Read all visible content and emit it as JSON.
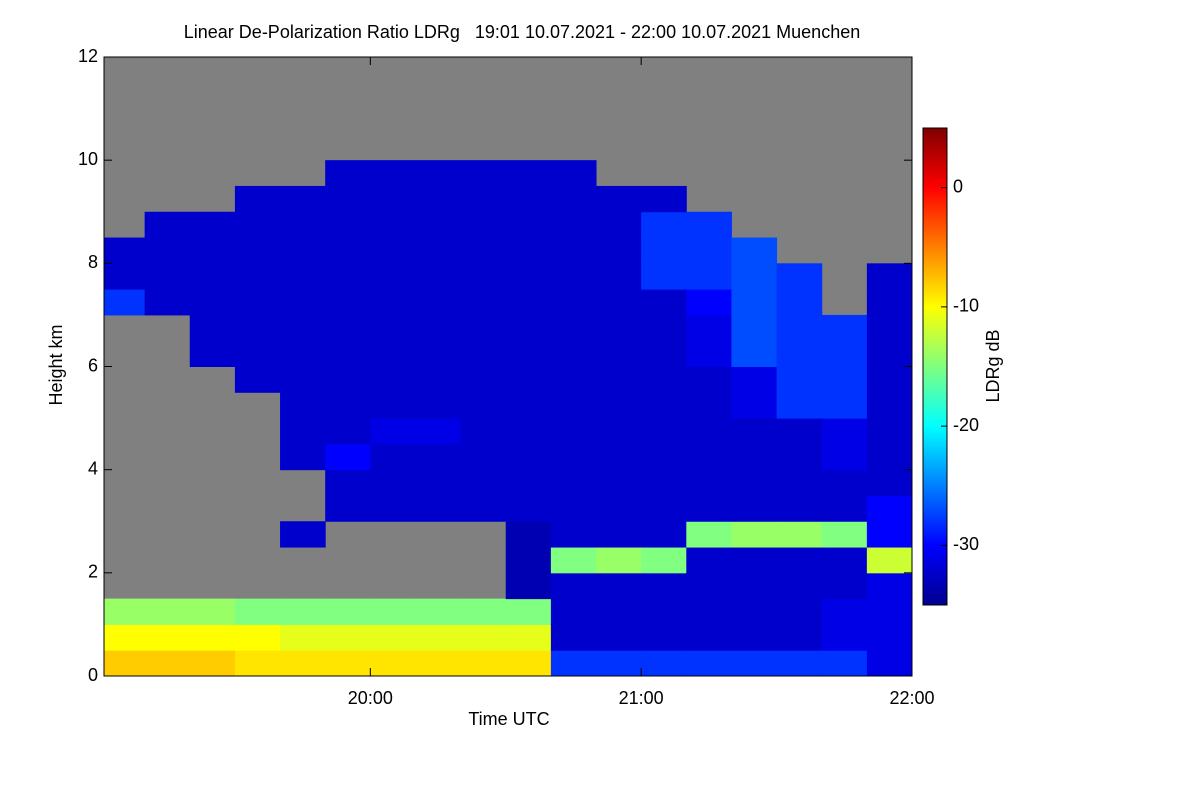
{
  "chart_data": {
    "type": "heatmap",
    "title": "Linear De-Polarization Ratio LDRg   19:01 10.07.2021 - 22:00 10.07.2021 Muenchen",
    "xlabel": "Time UTC",
    "ylabel": "Height km",
    "colorbar_label": "LDRg dB",
    "x_edges": [
      1141,
      1150,
      1160,
      1170,
      1180,
      1190,
      1200,
      1210,
      1220,
      1230,
      1240,
      1250,
      1260,
      1270,
      1280,
      1290,
      1300,
      1310,
      1320
    ],
    "y_edges": [
      0,
      0.5,
      1,
      1.5,
      2,
      2.5,
      3,
      3.5,
      4,
      4.5,
      5,
      5.5,
      6,
      6.5,
      7,
      7.5,
      8,
      8.5,
      9,
      9.5,
      10,
      10.5,
      11,
      11.5,
      12
    ],
    "z": [
      [
        -8,
        -10,
        -14,
        null,
        null,
        null,
        null,
        null,
        null,
        null,
        null,
        null,
        null,
        null,
        -28,
        -32,
        -32,
        null,
        null,
        null,
        null,
        null,
        null,
        null
      ],
      [
        -8,
        -10,
        -14,
        null,
        null,
        null,
        null,
        null,
        null,
        null,
        null,
        null,
        null,
        null,
        -32,
        -32,
        -32,
        -32,
        null,
        null,
        null,
        null,
        null,
        null
      ],
      [
        -8,
        -10,
        -14,
        null,
        null,
        null,
        null,
        null,
        null,
        null,
        null,
        null,
        -32,
        -32,
        -32,
        -32,
        -32,
        -32,
        null,
        null,
        null,
        null,
        null,
        null
      ],
      [
        -9,
        -10,
        -15,
        null,
        null,
        null,
        null,
        null,
        null,
        null,
        null,
        -32,
        -32,
        -32,
        -32,
        -32,
        -32,
        -32,
        -32,
        null,
        null,
        null,
        null,
        null
      ],
      [
        -9,
        -11,
        -15,
        null,
        null,
        -32,
        null,
        null,
        -32,
        -32,
        -32,
        -32,
        -32,
        -32,
        -32,
        -32,
        -32,
        -32,
        -32,
        null,
        null,
        null,
        null,
        null
      ],
      [
        -9,
        -11,
        -15,
        null,
        null,
        null,
        -32,
        -32,
        -30,
        -32,
        -32,
        -32,
        -32,
        -32,
        -32,
        -32,
        -32,
        -32,
        -32,
        -32,
        null,
        null,
        null,
        null
      ],
      [
        -9,
        -11,
        -15,
        null,
        null,
        null,
        -32,
        -32,
        -32,
        -31,
        -32,
        -32,
        -32,
        -32,
        -32,
        -32,
        -32,
        -32,
        -32,
        -32,
        null,
        null,
        null,
        null
      ],
      [
        -9,
        -11,
        -15,
        null,
        null,
        null,
        -32,
        -32,
        -32,
        -31,
        -32,
        -32,
        -32,
        -32,
        -32,
        -32,
        -32,
        -32,
        -32,
        -32,
        null,
        null,
        null,
        null
      ],
      [
        -9,
        -11,
        -15,
        null,
        null,
        null,
        -32,
        -32,
        -32,
        -32,
        -32,
        -32,
        -32,
        -32,
        -32,
        -32,
        -32,
        -32,
        -32,
        -32,
        null,
        null,
        null,
        null
      ],
      [
        -9,
        -11,
        -15,
        -33,
        -33,
        -33,
        -32,
        -32,
        -32,
        -32,
        -32,
        -32,
        -32,
        -32,
        -32,
        -32,
        -32,
        -32,
        -32,
        -32,
        null,
        null,
        null,
        null
      ],
      [
        -28,
        -32,
        -32,
        -32,
        -15,
        -32,
        -32,
        -32,
        -32,
        -32,
        -32,
        -32,
        -32,
        -32,
        -32,
        -32,
        -32,
        -32,
        -32,
        -32,
        null,
        null,
        null,
        null
      ],
      [
        -28,
        -32,
        -32,
        -32,
        -14,
        -32,
        -32,
        -32,
        -32,
        -32,
        -32,
        -32,
        -32,
        -32,
        -32,
        -32,
        -32,
        -32,
        -32,
        null,
        null,
        null,
        null,
        null
      ],
      [
        -28,
        -32,
        -32,
        -32,
        -15,
        -32,
        -32,
        -32,
        -32,
        -32,
        -32,
        -32,
        -32,
        -32,
        -32,
        -28,
        -28,
        -28,
        -32,
        null,
        null,
        null,
        null,
        null
      ],
      [
        -28,
        -32,
        -32,
        -32,
        -32,
        -15,
        -32,
        -32,
        -32,
        -32,
        -32,
        -32,
        -31,
        -31,
        -30,
        -28,
        -28,
        -28,
        null,
        null,
        null,
        null,
        null,
        null
      ],
      [
        -28,
        -32,
        -32,
        -32,
        -32,
        -14,
        -32,
        -32,
        -32,
        -32,
        -31,
        -31,
        -27,
        -27,
        -27,
        -27,
        -27,
        null,
        null,
        null,
        null,
        null,
        null,
        null
      ],
      [
        -28,
        -32,
        -32,
        -32,
        -32,
        -14,
        -32,
        -32,
        -32,
        -32,
        -28,
        -28,
        -28,
        -28,
        -28,
        -28,
        null,
        null,
        null,
        null,
        null,
        null,
        null,
        null
      ],
      [
        -28,
        -31,
        -31,
        -32,
        -32,
        -15,
        -32,
        -32,
        -31,
        -31,
        -28,
        -28,
        -28,
        -28,
        null,
        null,
        null,
        null,
        null,
        null,
        null,
        null,
        null,
        null
      ],
      [
        -31,
        -31,
        -31,
        -31,
        -12,
        -30,
        -30,
        -32,
        -32,
        -32,
        -32,
        -32,
        -32,
        -32,
        -32,
        -32,
        null,
        null,
        null,
        null,
        null,
        null,
        null,
        null
      ]
    ],
    "xlim": [
      1141,
      1320
    ],
    "xticks": [
      {
        "value": 1200,
        "label": "20:00"
      },
      {
        "value": 1260,
        "label": "21:00"
      },
      {
        "value": 1320,
        "label": "22:00"
      }
    ],
    "ylim": [
      0,
      12
    ],
    "yticks": [
      0,
      2,
      4,
      6,
      8,
      10,
      12
    ],
    "clim": [
      -35,
      5
    ],
    "cticks": [
      -30,
      -20,
      -10,
      0
    ],
    "colormap": "jet",
    "background": "#808080"
  }
}
